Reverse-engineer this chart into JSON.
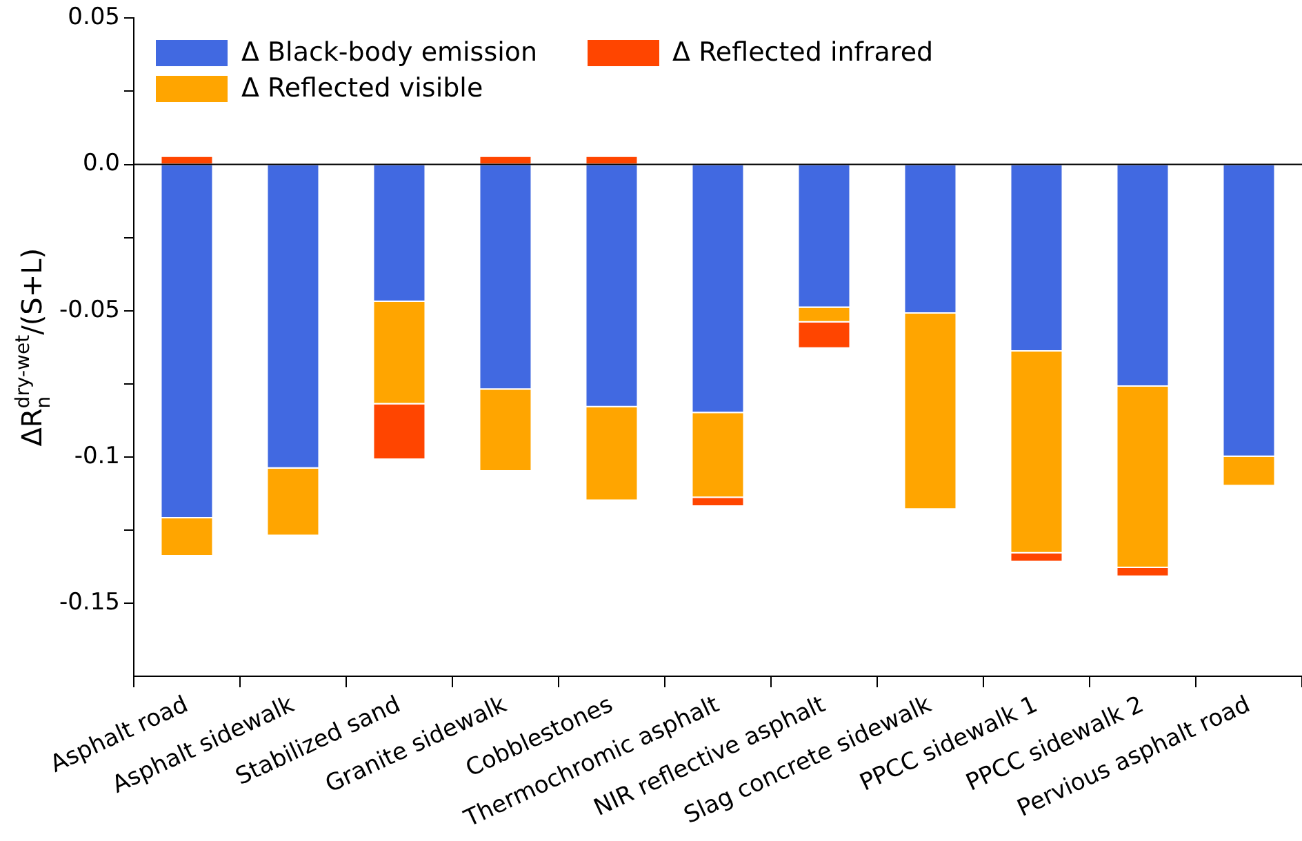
{
  "chart_data": {
    "type": "bar",
    "stacked": true,
    "ylabel": "ΔR$_{n}$$^{dry-wet}$/(S+L)",
    "categories": [
      "Asphalt road",
      "Asphalt sidewalk",
      "Stabilized sand",
      "Granite sidewalk",
      "Cobblestones",
      "Thermochromic asphalt",
      "NIR reflective asphalt",
      "Slag concrete sidewalk",
      "PPCC sidewalk 1",
      "PPCC sidewalk 2",
      "Pervious asphalt road"
    ],
    "series": [
      {
        "name": "Δ Black-body emission",
        "color": "#4169e1",
        "values": [
          -0.121,
          -0.104,
          -0.047,
          -0.077,
          -0.083,
          -0.085,
          -0.049,
          -0.051,
          -0.064,
          -0.076,
          -0.1
        ]
      },
      {
        "name": "Δ Reflected visible",
        "color": "#ffa500",
        "values": [
          -0.013,
          -0.023,
          -0.035,
          -0.028,
          -0.032,
          -0.029,
          -0.005,
          -0.067,
          -0.069,
          -0.062,
          -0.01
        ]
      },
      {
        "name": "Δ Reflected infrared",
        "color": "#ff4500",
        "values": [
          0.003,
          null,
          -0.019,
          0.003,
          0.003,
          -0.003,
          -0.009,
          null,
          -0.003,
          -0.003,
          null
        ]
      }
    ],
    "ylim": [
      -0.175,
      0.05
    ],
    "yticks": [
      0.05,
      {
        "value": 0.025,
        "label": null
      },
      {
        "value": 0,
        "label": "0.0"
      },
      {
        "value": -0.025,
        "label": null
      },
      -0.05,
      {
        "value": -0.075,
        "label": null
      },
      -0.1,
      {
        "value": -0.125,
        "label": null
      },
      -0.15
    ],
    "ref_lines": [
      {
        "axis": "y",
        "value": 0,
        "color": "#000000"
      }
    ],
    "grid": false,
    "legend": "top left"
  }
}
